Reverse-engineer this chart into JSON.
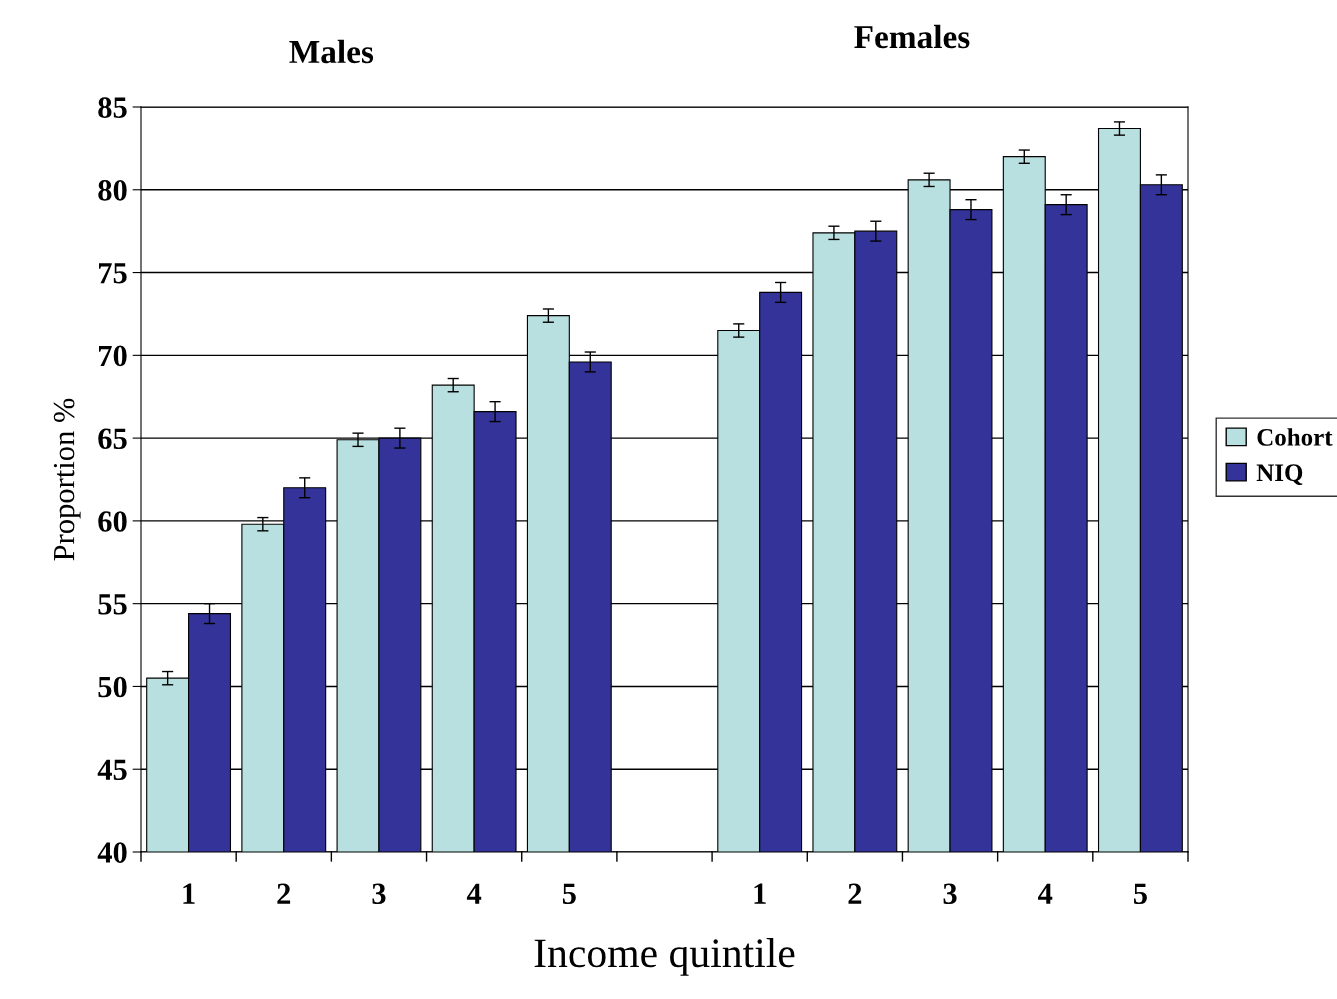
{
  "chart_data": {
    "type": "bar",
    "xlabel": "Income quintile",
    "ylabel": "Proportion %",
    "annotations": [
      "Males",
      "Females"
    ],
    "categories": [
      "1",
      "2",
      "3",
      "4",
      "5",
      null,
      "1",
      "2",
      "3",
      "4",
      "5"
    ],
    "series": [
      {
        "name": "Cohort",
        "color": "#b9e0e0",
        "values": [
          50.5,
          59.8,
          64.9,
          68.2,
          72.4,
          null,
          71.5,
          77.4,
          80.6,
          82.0,
          83.7
        ],
        "errors": [
          0.4,
          0.4,
          0.4,
          0.4,
          0.4,
          null,
          0.4,
          0.4,
          0.4,
          0.4,
          0.4
        ]
      },
      {
        "name": "NIQ",
        "color": "#333399",
        "values": [
          54.4,
          62.0,
          65.0,
          66.6,
          69.6,
          null,
          73.8,
          77.5,
          78.8,
          79.1,
          80.3
        ],
        "errors": [
          0.6,
          0.6,
          0.6,
          0.6,
          0.6,
          null,
          0.6,
          0.6,
          0.6,
          0.6,
          0.6
        ]
      }
    ],
    "ylim": [
      40,
      85
    ],
    "yticks": [
      40,
      45,
      50,
      55,
      60,
      65,
      70,
      75,
      80,
      85
    ],
    "grid": "y",
    "legend": "right"
  }
}
